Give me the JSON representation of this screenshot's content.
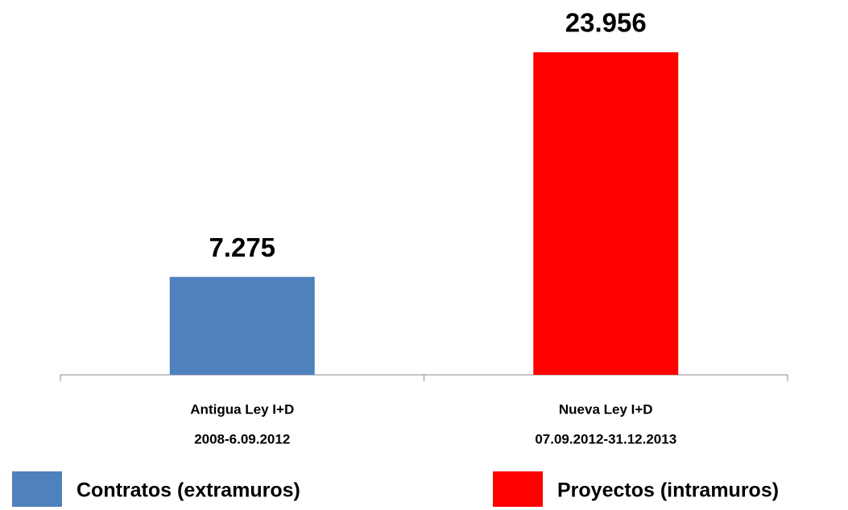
{
  "chart_data": {
    "type": "bar",
    "categories": [
      [
        "Antigua Ley  I+D",
        "2008-6.09.2012"
      ],
      [
        "Nueva Ley I+D",
        "07.09.2012-31.12.2013"
      ]
    ],
    "series": [
      {
        "name": "Contratos (extramuros)",
        "color": "#4f81bd",
        "values": [
          7275,
          null
        ],
        "value_labels": [
          "7.275",
          null
        ]
      },
      {
        "name": "Proyectos (intramuros)",
        "color": "#ff0000",
        "values": [
          null,
          23956
        ],
        "value_labels": [
          null,
          "23.956"
        ]
      }
    ]
  }
}
